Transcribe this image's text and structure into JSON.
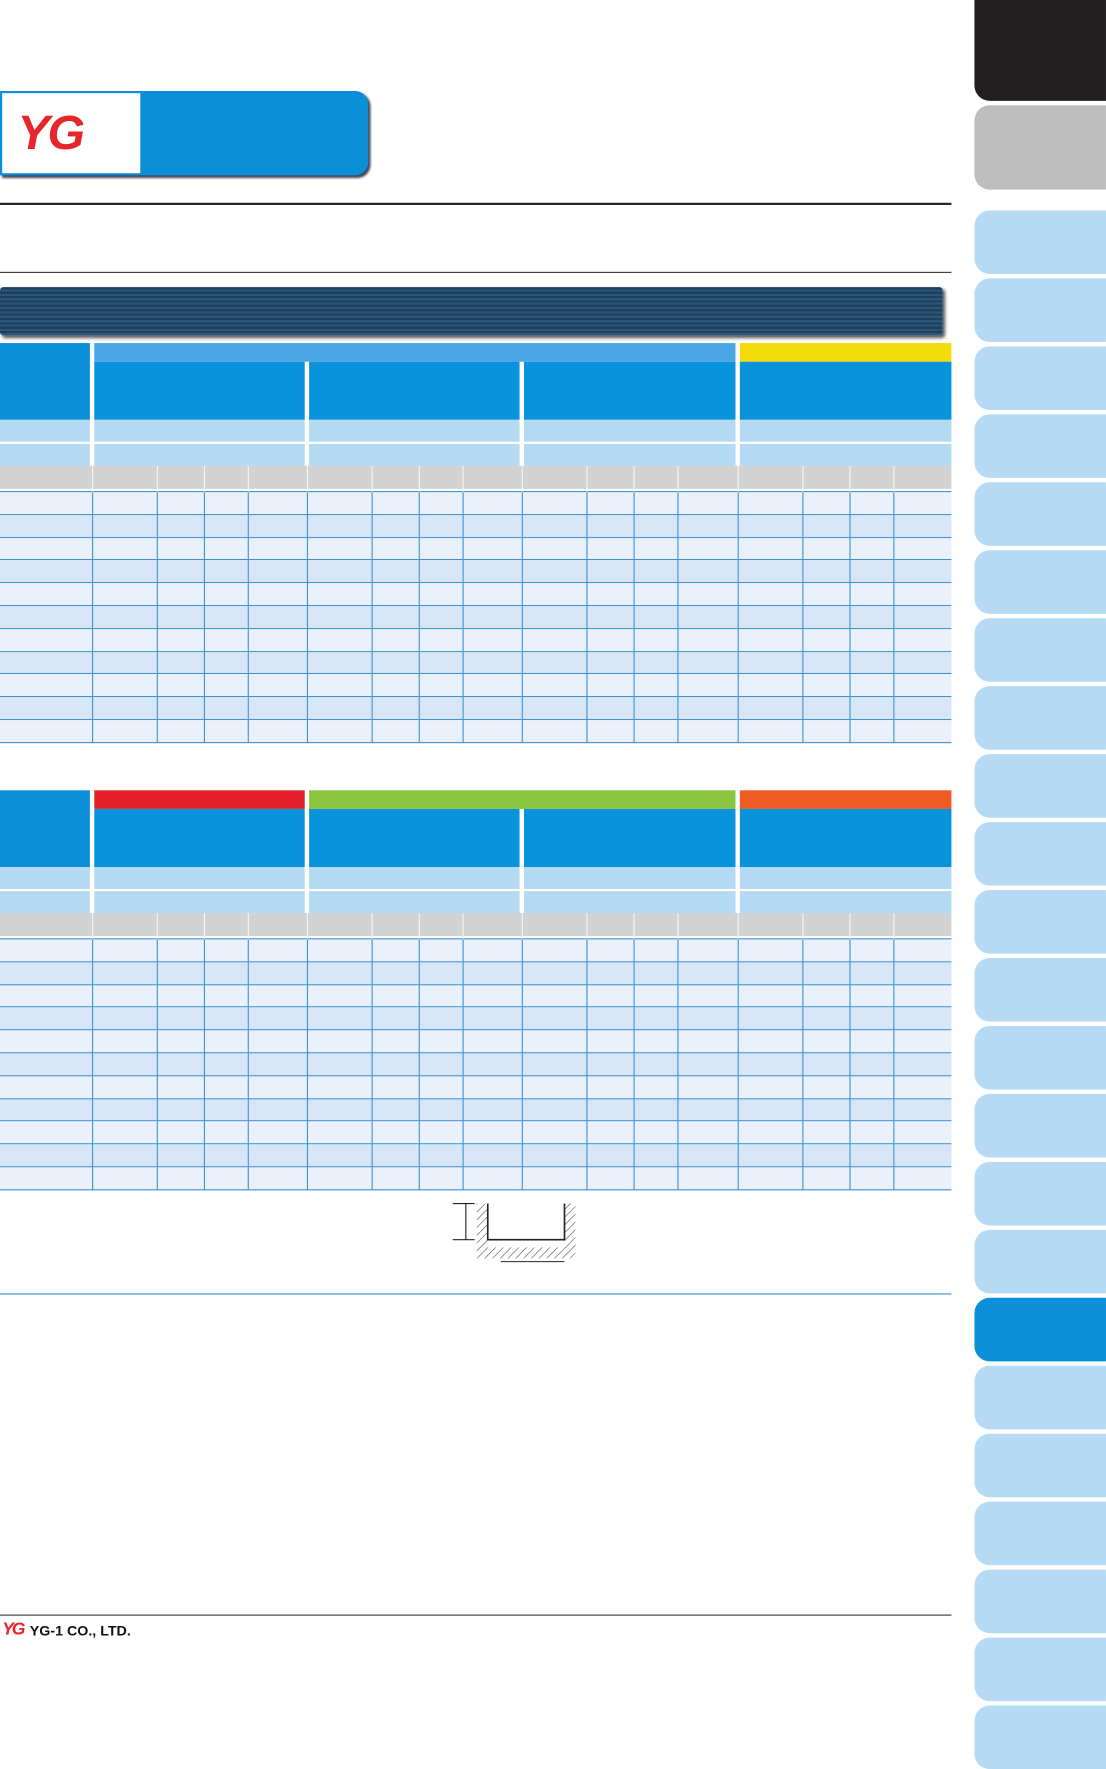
{
  "header": {
    "logo_text": "YG"
  },
  "footer": {
    "company": "YG-1 CO., LTD."
  }
}
